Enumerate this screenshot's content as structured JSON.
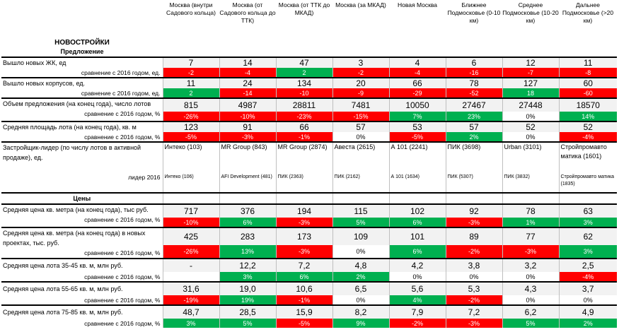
{
  "title": "НОВОСТРОЙКИ",
  "subtitle_supply": "Предложение",
  "subtitle_prices": "Цены",
  "regions": [
    "Москва (внутри Садового кольца)",
    "Москва (от Садового кольца до ТТК)",
    "Москва (от ТТК до МКАД)",
    "Москва (за МКАД)",
    "Новая Москва",
    "Ближнее Подмосковье (0-10 км)",
    "Среднее Подмосковье (10-20 км)",
    "Дальнее Подмосковье (>20 км)"
  ],
  "compare_label": "сравнение с 2016 годом, ед.",
  "compare_label_pct": "сравнение с 2016 годом, %",
  "compare_label_pct_spaced": "сравнение с 2016 годом, %",
  "rows": {
    "new_complexes": {
      "label": "Вышло новых ЖК, ед",
      "values": [
        "7",
        "14",
        "47",
        "3",
        "4",
        "6",
        "12",
        "11"
      ],
      "diff": [
        "-2",
        "-4",
        "2",
        "-2",
        "-4",
        "-16",
        "-7",
        "-8"
      ],
      "diff_colors": [
        "red",
        "red",
        "green",
        "red",
        "red",
        "red",
        "red",
        "red"
      ]
    },
    "new_buildings": {
      "label": "Вышло новых корпусов, ед.",
      "values": [
        "11",
        "24",
        "134",
        "20",
        "66",
        "78",
        "127",
        "60"
      ],
      "diff": [
        "2",
        "-14",
        "-10",
        "-9",
        "-29",
        "-52",
        "18",
        "-60"
      ],
      "diff_colors": [
        "green",
        "red",
        "red",
        "red",
        "red",
        "red",
        "green",
        "red"
      ]
    },
    "supply_volume": {
      "label": "Объем предложения (на конец года), число лотов",
      "values": [
        "815",
        "4987",
        "28811",
        "7481",
        "10050",
        "27467",
        "27448",
        "18570"
      ],
      "diff": [
        "-26%",
        "-10%",
        "-23%",
        "-15%",
        "7%",
        "23%",
        "0%",
        "14%"
      ],
      "diff_colors": [
        "red",
        "red",
        "red",
        "red",
        "green",
        "green",
        "neutral",
        "green"
      ]
    },
    "avg_area": {
      "label": "Средняя площадь лота (на конец года), кв. м",
      "values": [
        "123",
        "91",
        "66",
        "57",
        "53",
        "57",
        "52",
        "52"
      ],
      "diff": [
        "-5%",
        "-3%",
        "-1%",
        "0%",
        "-5%",
        "2%",
        "0%",
        "-4%"
      ],
      "diff_colors": [
        "red",
        "red",
        "red",
        "neutral",
        "red",
        "green",
        "neutral",
        "red"
      ]
    },
    "leader": {
      "label": "Застройщик-лидер (по числу лотов в активной продаже), ед.",
      "values": [
        "Интеко (103)",
        "MR Group (843)",
        "MR Group (2874)",
        "Авеста (2615)",
        "А 101 (2241)",
        "ПИК (3698)",
        "Urban (3101)",
        "Стройпромавто матика (1601)"
      ],
      "label_2016": "лидер 2016",
      "values_2016": [
        "Интеко (106)",
        "AFI Development (481)",
        "ПИК (2363)",
        "ПИК (2162)",
        "А 101 (1634)",
        "ПИК (5307)",
        "ПИК (3832)",
        "Стройпромавто матика (1835)"
      ]
    },
    "price_sqm": {
      "label": "Средняя цена кв. метра (на конец года), тыс руб.",
      "values": [
        "717",
        "376",
        "194",
        "115",
        "102",
        "92",
        "78",
        "63"
      ],
      "diff": [
        "-10%",
        "6%",
        "-3%",
        "5%",
        "6%",
        "-3%",
        "1%",
        "3%"
      ],
      "diff_colors": [
        "red",
        "green",
        "red",
        "green",
        "green",
        "red",
        "green",
        "green"
      ]
    },
    "price_sqm_new": {
      "label": "Средняя цена кв. метра (на конец года) в новых проектах, тыс. руб.",
      "values": [
        "425",
        "283",
        "173",
        "109",
        "101",
        "89",
        "77",
        "62"
      ],
      "diff": [
        "-26%",
        "13%",
        "-3%",
        "0%",
        "6%",
        "-2%",
        "-3%",
        "3%"
      ],
      "diff_colors": [
        "red",
        "green",
        "red",
        "neutral",
        "green",
        "red",
        "red",
        "green"
      ]
    },
    "lot_35_45": {
      "label": "Средняя цена лота 35-45 кв. м, млн руб.",
      "values": [
        "-",
        "12,2",
        "7,2",
        "4,8",
        "4,2",
        "3,8",
        "3,2",
        "2,5"
      ],
      "diff": [
        "",
        "3%",
        "6%",
        "2%",
        "0%",
        "0%",
        "0%",
        "-4%"
      ],
      "diff_colors": [
        "neutral",
        "green",
        "green",
        "green",
        "neutral",
        "neutral",
        "neutral",
        "red"
      ]
    },
    "lot_55_65": {
      "label": "Средняя цена лота 55-65 кв. м, млн руб.",
      "values": [
        "31,6",
        "19,0",
        "10,6",
        "6,5",
        "5,6",
        "5,3",
        "4,3",
        "3,7"
      ],
      "diff": [
        "-19%",
        "19%",
        "-1%",
        "0%",
        "4%",
        "-2%",
        "0%",
        "0%"
      ],
      "diff_colors": [
        "red",
        "green",
        "red",
        "neutral",
        "green",
        "red",
        "neutral",
        "neutral"
      ]
    },
    "lot_75_85": {
      "label": "Средняя цена лота 75-85 кв. м, млн руб.",
      "values": [
        "48,7",
        "28,5",
        "15,9",
        "8,2",
        "7,9",
        "7,2",
        "6,2",
        "4,9"
      ],
      "diff": [
        "3%",
        "5%",
        "-5%",
        "9%",
        "-2%",
        "-3%",
        "5%",
        "2%"
      ],
      "diff_colors": [
        "green",
        "green",
        "red",
        "green",
        "red",
        "red",
        "green",
        "green"
      ]
    }
  },
  "colors": {
    "red": "#ff0000",
    "green": "#00b050",
    "neutral": "#ffffff"
  }
}
